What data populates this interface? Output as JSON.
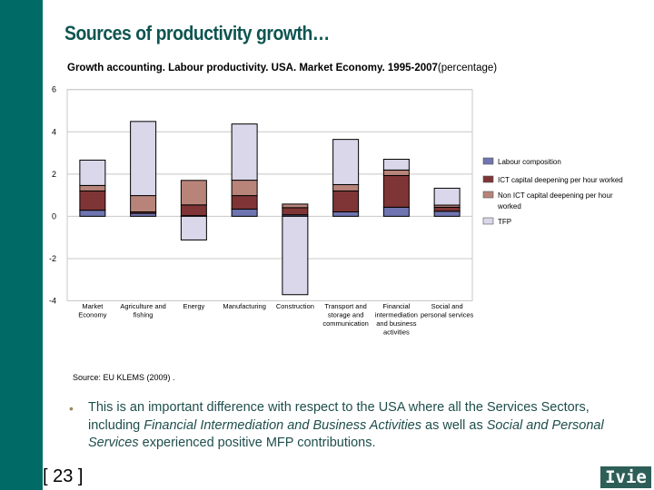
{
  "slide": {
    "title": "Sources of productivity growth…",
    "subtitle": "Growth accounting. Labour productivity. USA. Market Economy. 1995-2007",
    "subtitle_unit": "(percentage)",
    "source": "Source: EU KLEMS (2009) .",
    "bullet_parts": [
      {
        "text": "This is an important difference with respect to the USA where all the Services Sectors, including ",
        "italic": false
      },
      {
        "text": "Financial Intermediation and Business Activities",
        "italic": true
      },
      {
        "text": " as well as ",
        "italic": false
      },
      {
        "text": "Social and Personal Services",
        "italic": true
      },
      {
        "text": " experienced positive MFP contributions.",
        "italic": false
      }
    ],
    "page_number": "[ 23 ]",
    "logo": "Ivie",
    "colors": {
      "sidebar": "#006b66",
      "text": "#1e4e4c"
    }
  },
  "chart_data": {
    "type": "bar",
    "stacked": true,
    "title": "Growth accounting. Labour productivity. USA. Market Economy. 1995-2007 (percentage)",
    "categories": [
      [
        "Market",
        "Economy"
      ],
      [
        "Agriculture and",
        "fishing"
      ],
      [
        "Energy"
      ],
      [
        "Manufacturing"
      ],
      [
        "Construction"
      ],
      [
        "Transport and",
        "storage and",
        "communication"
      ],
      [
        "Financial",
        "intermediation",
        "and business",
        "activities"
      ],
      [
        "Social and",
        "personal services"
      ]
    ],
    "series": [
      {
        "name": "Labour composition",
        "color": "#6f75b0",
        "values": [
          0.29,
          0.14,
          0.03,
          0.34,
          0.07,
          0.21,
          0.43,
          0.24
        ]
      },
      {
        "name": "ICT capital deepening per hour worked",
        "color": "#7f3535",
        "values": [
          0.91,
          0.07,
          0.51,
          0.64,
          0.34,
          0.99,
          1.5,
          0.19
        ]
      },
      {
        "name": "Non ICT capital deepening per hour worked",
        "color": "#b8847a",
        "values": [
          0.26,
          0.77,
          1.16,
          0.73,
          0.17,
          0.3,
          0.26,
          0.1
        ]
      },
      {
        "name": "TFP",
        "color": "#d9d7e9",
        "values": [
          1.2,
          3.51,
          -1.12,
          2.66,
          -3.71,
          2.14,
          0.51,
          0.8
        ]
      }
    ],
    "ylim": [
      -4,
      6
    ],
    "yticks": [
      "-4",
      "-2",
      "0",
      "2",
      "4",
      "6"
    ],
    "grid": true,
    "legend": "right"
  }
}
